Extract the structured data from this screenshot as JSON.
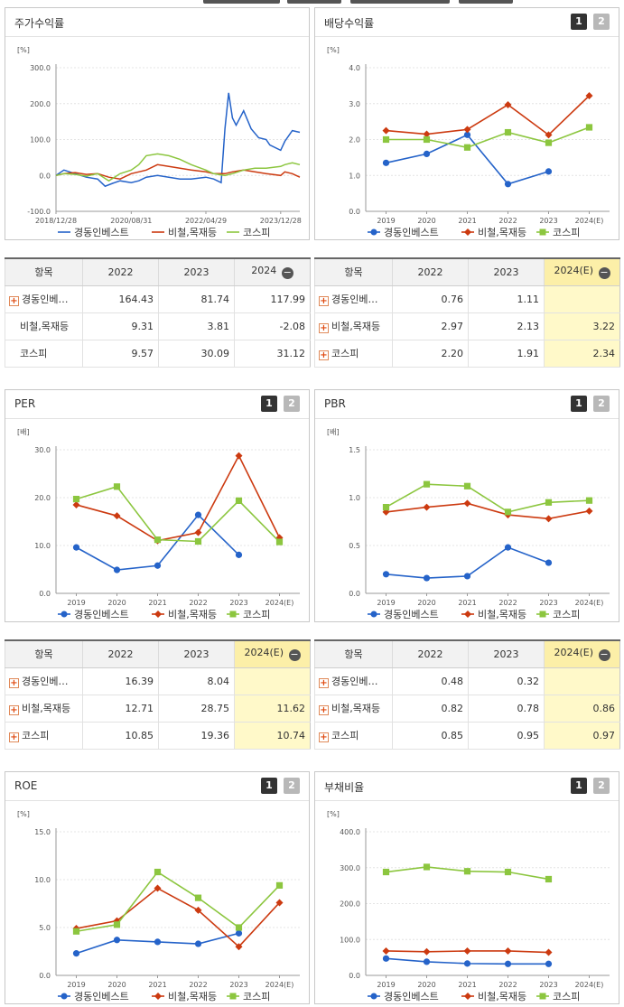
{
  "buttons": {
    "page1": "1",
    "page2": "2",
    "collapse": "−",
    "expand": "+"
  },
  "legend": [
    "경동인베스트",
    "비철,목재등",
    "코스피"
  ],
  "colors": {
    "s0": "#2563c9",
    "s1": "#cc3a10",
    "s2": "#8cc63f"
  },
  "chart_data": [
    {
      "id": "price",
      "type": "line",
      "title": "주가수익률",
      "unit": "[%]",
      "x_tick_labels": [
        "2018/12/28",
        "2020/08/31",
        "2022/04/29",
        "2023/12/28"
      ],
      "y_tick_labels": [
        "-100.0",
        "0.0",
        "100.0",
        "200.0",
        "300.0"
      ],
      "ylim": [
        -100,
        300
      ],
      "x_range": [
        "2018/12/28",
        "2024/06"
      ],
      "grid": true,
      "legend_position": "bottom",
      "series": [
        {
          "name": "경동인베스트",
          "x": [
            "2018/12/28",
            "2019/03",
            "2019/06",
            "2019/09",
            "2019/12",
            "2020/02",
            "2020/04",
            "2020/06",
            "2020/08/31",
            "2020/11",
            "2021/01",
            "2021/04",
            "2021/07",
            "2021/10",
            "2022/01",
            "2022/04/29",
            "2022/07",
            "2022/09",
            "2022/10",
            "2022/11",
            "2022/12",
            "2023/01",
            "2023/03",
            "2023/05",
            "2023/07",
            "2023/09",
            "2023/10",
            "2023/12/28",
            "2024/02",
            "2024/04",
            "2024/06"
          ],
          "values": [
            0,
            15,
            5,
            -5,
            -10,
            -30,
            -22,
            -15,
            -20,
            -15,
            -5,
            0,
            -5,
            -10,
            -10,
            -5,
            -10,
            -20,
            130,
            230,
            160,
            140,
            180,
            130,
            105,
            100,
            85,
            70,
            95,
            125,
            120
          ]
        },
        {
          "name": "비철,목재등",
          "x": [
            "2018/12/28",
            "2019/03",
            "2019/06",
            "2019/09",
            "2019/12",
            "2020/03",
            "2020/06",
            "2020/08/31",
            "2020/11",
            "2021/01",
            "2021/04",
            "2021/07",
            "2021/10",
            "2022/01",
            "2022/04/29",
            "2022/07",
            "2022/10",
            "2022/12",
            "2023/03",
            "2023/06",
            "2023/09",
            "2023/12/28",
            "2024/02",
            "2024/04",
            "2024/06"
          ],
          "values": [
            0,
            5,
            8,
            3,
            5,
            -5,
            -10,
            5,
            10,
            15,
            30,
            25,
            20,
            15,
            10,
            5,
            5,
            10,
            15,
            10,
            5,
            0,
            10,
            5,
            -5
          ]
        },
        {
          "name": "코스피",
          "x": [
            "2018/12/28",
            "2019/03",
            "2019/06",
            "2019/09",
            "2019/12",
            "2020/03",
            "2020/06",
            "2020/08/31",
            "2020/11",
            "2021/01",
            "2021/04",
            "2021/07",
            "2021/10",
            "2022/01",
            "2022/04/29",
            "2022/07",
            "2022/10",
            "2022/12",
            "2023/03",
            "2023/06",
            "2023/09",
            "2023/12/28",
            "2024/02",
            "2024/04",
            "2024/06"
          ],
          "values": [
            0,
            5,
            3,
            -2,
            5,
            -15,
            5,
            15,
            30,
            55,
            60,
            55,
            45,
            30,
            15,
            5,
            0,
            5,
            15,
            20,
            20,
            25,
            30,
            35,
            30
          ]
        }
      ]
    },
    {
      "id": "dividend",
      "type": "line",
      "title": "배당수익률",
      "unit": "[%]",
      "categories": [
        "2019",
        "2020",
        "2021",
        "2022",
        "2023",
        "2024(E)"
      ],
      "y_tick_labels": [
        "0.0",
        "1.0",
        "2.0",
        "3.0",
        "4.0"
      ],
      "ylim": [
        0,
        4
      ],
      "grid": true,
      "legend_position": "bottom",
      "series": [
        {
          "name": "경동인베스트",
          "values": [
            1.35,
            1.6,
            2.13,
            0.76,
            1.11,
            null
          ]
        },
        {
          "name": "비철,목재등",
          "values": [
            2.25,
            2.15,
            2.28,
            2.97,
            2.13,
            3.22
          ]
        },
        {
          "name": "코스피",
          "values": [
            2.0,
            2.0,
            1.78,
            2.2,
            1.91,
            2.34
          ]
        }
      ]
    },
    {
      "id": "per",
      "type": "line",
      "title": "PER",
      "unit": "[배]",
      "categories": [
        "2019",
        "2020",
        "2021",
        "2022",
        "2023",
        "2024(E)"
      ],
      "y_tick_labels": [
        "0.0",
        "10.0",
        "20.0",
        "30.0"
      ],
      "ylim": [
        0,
        30
      ],
      "grid": true,
      "legend_position": "bottom",
      "series": [
        {
          "name": "경동인베스트",
          "values": [
            9.6,
            4.9,
            5.8,
            16.39,
            8.04,
            null
          ]
        },
        {
          "name": "비철,목재등",
          "values": [
            18.5,
            16.2,
            11.0,
            12.71,
            28.75,
            11.62
          ]
        },
        {
          "name": "코스피",
          "values": [
            19.7,
            22.3,
            11.2,
            10.85,
            19.36,
            10.74
          ]
        }
      ]
    },
    {
      "id": "pbr",
      "type": "line",
      "title": "PBR",
      "unit": "[배]",
      "categories": [
        "2019",
        "2020",
        "2021",
        "2022",
        "2023",
        "2024(E)"
      ],
      "y_tick_labels": [
        "0.0",
        "0.5",
        "1.0",
        "1.5"
      ],
      "ylim": [
        0,
        1.5
      ],
      "grid": true,
      "legend_position": "bottom",
      "series": [
        {
          "name": "경동인베스트",
          "values": [
            0.2,
            0.16,
            0.18,
            0.48,
            0.32,
            null
          ]
        },
        {
          "name": "비철,목재등",
          "values": [
            0.85,
            0.9,
            0.94,
            0.82,
            0.78,
            0.86
          ]
        },
        {
          "name": "코스피",
          "values": [
            0.9,
            1.14,
            1.12,
            0.85,
            0.95,
            0.97
          ]
        }
      ]
    },
    {
      "id": "roe",
      "type": "line",
      "title": "ROE",
      "unit": "[%]",
      "categories": [
        "2019",
        "2020",
        "2021",
        "2022",
        "2023",
        "2024(E)"
      ],
      "y_tick_labels": [
        "0.0",
        "5.0",
        "10.0",
        "15.0"
      ],
      "ylim": [
        0,
        15
      ],
      "grid": true,
      "legend_position": "bottom",
      "series": [
        {
          "name": "경동인베스트",
          "values": [
            2.3,
            3.7,
            3.5,
            3.3,
            4.4,
            null
          ]
        },
        {
          "name": "비철,목재등",
          "values": [
            4.9,
            5.7,
            9.1,
            6.8,
            3.0,
            7.6
          ]
        },
        {
          "name": "코스피",
          "values": [
            4.6,
            5.3,
            10.8,
            8.1,
            5.0,
            9.4
          ]
        }
      ]
    },
    {
      "id": "debt",
      "type": "line",
      "title": "부채비율",
      "unit": "[%]",
      "categories": [
        "2019",
        "2020",
        "2021",
        "2022",
        "2023",
        "2024(E)"
      ],
      "y_tick_labels": [
        "0.0",
        "100.0",
        "200.0",
        "300.0",
        "400.0"
      ],
      "ylim": [
        0,
        400
      ],
      "grid": true,
      "legend_position": "bottom",
      "series": [
        {
          "name": "경동인베스트",
          "values": [
            47,
            38,
            33,
            32,
            32,
            null
          ]
        },
        {
          "name": "비철,목재등",
          "values": [
            68,
            66,
            68,
            68,
            64,
            null
          ]
        },
        {
          "name": "코스피",
          "values": [
            288,
            302,
            290,
            288,
            268,
            null
          ]
        }
      ]
    }
  ],
  "tables": [
    {
      "id": "price",
      "headers": [
        "항목",
        "2022",
        "2023",
        "2024"
      ],
      "rows": [
        {
          "label": "경동인베…",
          "expandable": true,
          "cells": [
            "164.43",
            "81.74",
            "117.99"
          ]
        },
        {
          "label": "비철,목재등",
          "expandable": false,
          "cells": [
            "9.31",
            "3.81",
            "-2.08"
          ]
        },
        {
          "label": "코스피",
          "expandable": false,
          "cells": [
            "9.57",
            "30.09",
            "31.12"
          ]
        }
      ]
    },
    {
      "id": "dividend",
      "headers": [
        "항목",
        "2022",
        "2023",
        "2024(E)"
      ],
      "rows": [
        {
          "label": "경동인베…",
          "expandable": true,
          "cells": [
            "0.76",
            "1.11",
            ""
          ]
        },
        {
          "label": "비철,목재등",
          "expandable": true,
          "cells": [
            "2.97",
            "2.13",
            "3.22"
          ]
        },
        {
          "label": "코스피",
          "expandable": true,
          "cells": [
            "2.20",
            "1.91",
            "2.34"
          ]
        }
      ]
    },
    {
      "id": "per",
      "headers": [
        "항목",
        "2022",
        "2023",
        "2024(E)"
      ],
      "rows": [
        {
          "label": "경동인베…",
          "expandable": true,
          "cells": [
            "16.39",
            "8.04",
            ""
          ]
        },
        {
          "label": "비철,목재등",
          "expandable": true,
          "cells": [
            "12.71",
            "28.75",
            "11.62"
          ]
        },
        {
          "label": "코스피",
          "expandable": true,
          "cells": [
            "10.85",
            "19.36",
            "10.74"
          ]
        }
      ]
    },
    {
      "id": "pbr",
      "headers": [
        "항목",
        "2022",
        "2023",
        "2024(E)"
      ],
      "rows": [
        {
          "label": "경동인베…",
          "expandable": true,
          "cells": [
            "0.48",
            "0.32",
            ""
          ]
        },
        {
          "label": "비철,목재등",
          "expandable": true,
          "cells": [
            "0.82",
            "0.78",
            "0.86"
          ]
        },
        {
          "label": "코스피",
          "expandable": true,
          "cells": [
            "0.85",
            "0.95",
            "0.97"
          ]
        }
      ]
    }
  ]
}
